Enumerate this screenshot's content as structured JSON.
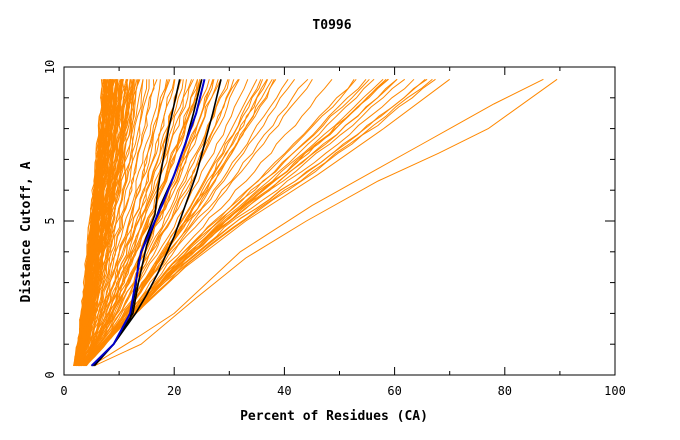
{
  "chart_data": {
    "type": "line",
    "title": "T0996",
    "xlabel": "Percent of Residues (CA)",
    "ylabel": "Distance Cutoff, A",
    "xlim": [
      0,
      100
    ],
    "ylim": [
      0,
      10
    ],
    "x_ticks": [
      0,
      20,
      40,
      60,
      80,
      100
    ],
    "y_ticks": [
      0,
      5,
      10
    ],
    "x_tick_labels": [
      "0",
      "20",
      "40",
      "60",
      "80",
      "100"
    ],
    "y_tick_labels": [
      "0",
      "5",
      "10"
    ],
    "grid": false,
    "colors": {
      "bundle": "#ff8800",
      "reference": "#000000",
      "highlight": "#0000cc"
    },
    "bundle_series": {
      "name": "model predictions (many series, orange)",
      "y_start": 0.3,
      "y_end": 9.6,
      "count": 150,
      "key_curves": [
        {
          "name": "steepest",
          "points": [
            [
              2.0,
              0.3
            ],
            [
              3.0,
              1.5
            ],
            [
              4.0,
              3.2
            ],
            [
              5.0,
              5.0
            ],
            [
              6.0,
              6.8
            ],
            [
              7.0,
              8.3
            ],
            [
              7.5,
              9.6
            ]
          ]
        },
        {
          "name": "steep",
          "points": [
            [
              2.2,
              0.3
            ],
            [
              4.0,
              1.0
            ],
            [
              5.5,
              2.5
            ],
            [
              7.0,
              4.0
            ],
            [
              8.5,
              5.5
            ],
            [
              10.0,
              7.0
            ],
            [
              12.0,
              9.6
            ]
          ]
        },
        {
          "name": "median",
          "points": [
            [
              3.0,
              0.3
            ],
            [
              7.0,
              1.0
            ],
            [
              11.0,
              2.0
            ],
            [
              16.0,
              3.5
            ],
            [
              23.0,
              5.5
            ],
            [
              29.0,
              7.5
            ],
            [
              35.0,
              9.6
            ]
          ]
        },
        {
          "name": "shallow",
          "points": [
            [
              4.0,
              0.3
            ],
            [
              10.0,
              1.5
            ],
            [
              22.0,
              3.5
            ],
            [
              33.0,
              5.0
            ],
            [
              46.0,
              6.5
            ],
            [
              58.0,
              8.0
            ],
            [
              70.0,
              9.6
            ]
          ]
        },
        {
          "name": "outlier-a",
          "points": [
            [
              5.0,
              0.3
            ],
            [
              14.0,
              1.3
            ],
            [
              20.0,
              2.0
            ],
            [
              32.0,
              4.0
            ],
            [
              45.0,
              5.5
            ],
            [
              57.0,
              6.7
            ],
            [
              65.0,
              7.5
            ],
            [
              78.0,
              8.8
            ],
            [
              87.0,
              9.6
            ]
          ]
        },
        {
          "name": "outlier-b",
          "points": [
            [
              5.5,
              0.3
            ],
            [
              14.0,
              1.0
            ],
            [
              24.0,
              2.5
            ],
            [
              33.0,
              3.8
            ],
            [
              44.0,
              5.0
            ],
            [
              57.0,
              6.3
            ],
            [
              68.0,
              7.2
            ],
            [
              77.0,
              8.0
            ],
            [
              89.5,
              9.6
            ]
          ]
        }
      ]
    },
    "series": [
      {
        "name": "reference-left",
        "color": "#000000",
        "points": [
          [
            5.5,
            0.3
          ],
          [
            9.0,
            1.0
          ],
          [
            12.0,
            1.8
          ],
          [
            13.0,
            2.8
          ],
          [
            13.5,
            3.7
          ],
          [
            15.0,
            4.5
          ],
          [
            16.5,
            5.2
          ],
          [
            17.0,
            6.0
          ],
          [
            18.0,
            7.0
          ],
          [
            19.0,
            8.0
          ],
          [
            20.0,
            8.8
          ],
          [
            21.0,
            9.6
          ]
        ]
      },
      {
        "name": "reference-right",
        "color": "#000000",
        "points": [
          [
            5.0,
            0.3
          ],
          [
            9.0,
            1.0
          ],
          [
            13.0,
            2.0
          ],
          [
            15.0,
            2.6
          ],
          [
            17.0,
            3.3
          ],
          [
            20.0,
            4.5
          ],
          [
            22.0,
            5.5
          ],
          [
            24.0,
            6.5
          ],
          [
            25.5,
            7.5
          ],
          [
            27.0,
            8.5
          ],
          [
            28.5,
            9.6
          ]
        ]
      },
      {
        "name": "reference-mid",
        "color": "#000000",
        "points": [
          [
            5.2,
            0.3
          ],
          [
            9.0,
            1.0
          ],
          [
            12.5,
            2.0
          ],
          [
            13.5,
            3.0
          ],
          [
            15.0,
            4.2
          ],
          [
            17.5,
            5.5
          ],
          [
            20.0,
            6.5
          ],
          [
            22.0,
            7.5
          ],
          [
            23.5,
            8.5
          ],
          [
            25.0,
            9.6
          ]
        ]
      },
      {
        "name": "highlight",
        "color": "#0000cc",
        "points": [
          [
            5.0,
            0.3
          ],
          [
            9.0,
            1.0
          ],
          [
            12.0,
            2.0
          ],
          [
            13.0,
            3.0
          ],
          [
            14.0,
            4.0
          ],
          [
            16.0,
            4.8
          ],
          [
            18.0,
            5.6
          ],
          [
            20.0,
            6.5
          ],
          [
            22.0,
            7.5
          ],
          [
            24.0,
            8.5
          ],
          [
            25.5,
            9.6
          ]
        ]
      }
    ]
  }
}
